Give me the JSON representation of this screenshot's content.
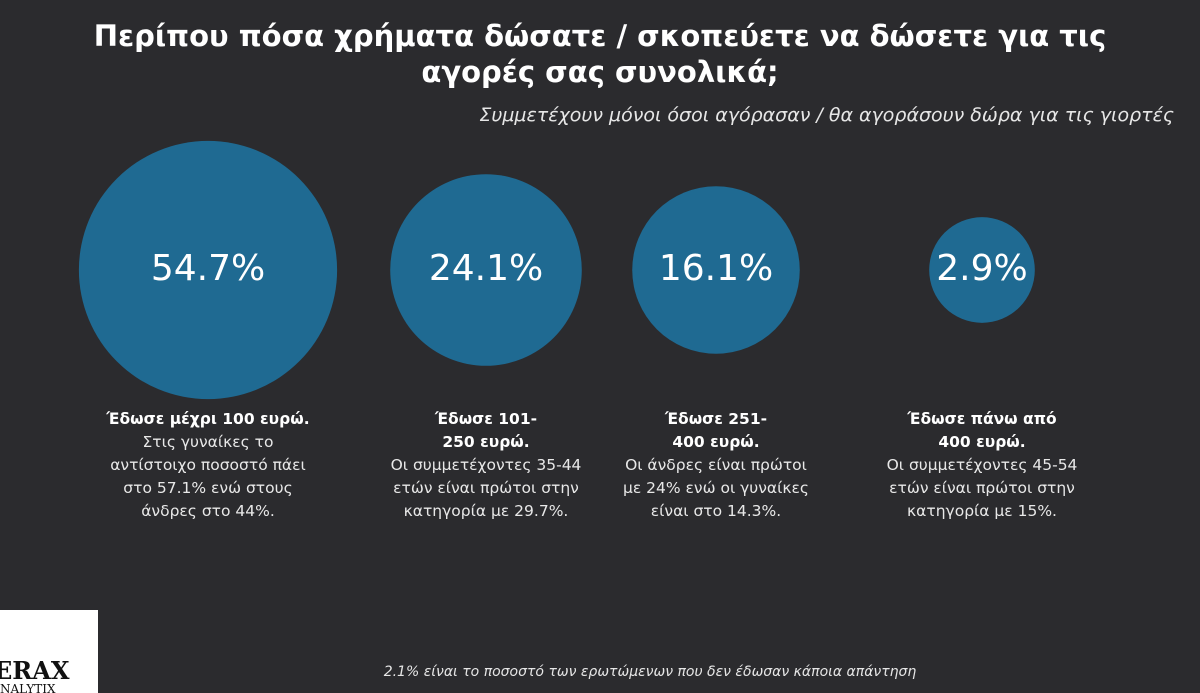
{
  "chart_data": {
    "type": "bubble",
    "title": "Περίπου πόσα χρήματα δώσατε / σκοπεύετε να δώσετε για τις αγορές σας συνολικά;",
    "subtitle": "Συμμετέχουν μόνοι όσοι αγόρασαν / θα αγοράσουν δώρα για τις γιορτές",
    "categories": [
      "Έδωσε μέχρι 100 ευρώ.",
      "Έδωσε 101-250 ευρώ.",
      "Έδωσε 251-400 ευρώ.",
      "Έδωσε πάνω από 400 ευρώ."
    ],
    "descriptions": [
      "Στις γυναίκες το αντίστοιχο ποσοστό πάει στο 57.1% ενώ στους άνδρες στο 44%.",
      "Οι συμμετέχοντες 35-44 ετών είναι πρώτοι στην κατηγορία με 29.7%.",
      "Οι άνδρες είναι πρώτοι με 24% ενώ οι γυναίκες είναι στο 14.3%.",
      "Οι συμμετέχοντες 45-54 ετών είναι πρώτοι στην κατηγορία με 15%."
    ],
    "values": [
      54.7,
      24.1,
      16.1,
      2.9
    ],
    "value_labels": [
      "54.7%",
      "24.1%",
      "16.1%",
      "2.9%"
    ],
    "color": "#1f6a92",
    "note": "2.1% είναι το ποσοστό των ερωτώμενων που δεν έδωσαν κάποια απάντηση"
  },
  "logo": {
    "lines": [
      "ERAX",
      "NALYTIX"
    ]
  }
}
